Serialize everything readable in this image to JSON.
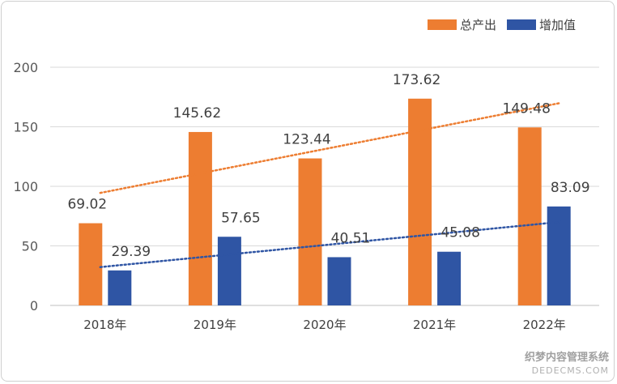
{
  "colors": {
    "total": "#ED7D31",
    "added": "#2F55A4",
    "grid": "#D9D9D9",
    "axis": "#BFBFBF"
  },
  "watermark": {
    "line1": "织梦内容管理系统",
    "line2": "DEDECMS.COM"
  },
  "chart_data": {
    "type": "bar",
    "title": "",
    "xlabel": "",
    "ylabel": "",
    "ylim": [
      0,
      200
    ],
    "yticks": [
      0,
      50,
      100,
      150,
      200
    ],
    "grid": true,
    "legend_position": "top-right",
    "categories": [
      "2018年",
      "2019年",
      "2020年",
      "2021年",
      "2022年"
    ],
    "series": [
      {
        "name": "总产出",
        "values": [
          69.02,
          145.62,
          123.44,
          173.62,
          149.48
        ],
        "labels": [
          "69.02",
          "145.62",
          "123.44",
          "173.62",
          "149.48"
        ],
        "trendline": "linear",
        "color_key": "total"
      },
      {
        "name": "增加值",
        "values": [
          29.39,
          57.65,
          40.51,
          45.08,
          83.09
        ],
        "labels": [
          "29.39",
          "57.65",
          "40.51",
          "45.08",
          "83.09"
        ],
        "trendline": "linear",
        "color_key": "added"
      }
    ]
  }
}
